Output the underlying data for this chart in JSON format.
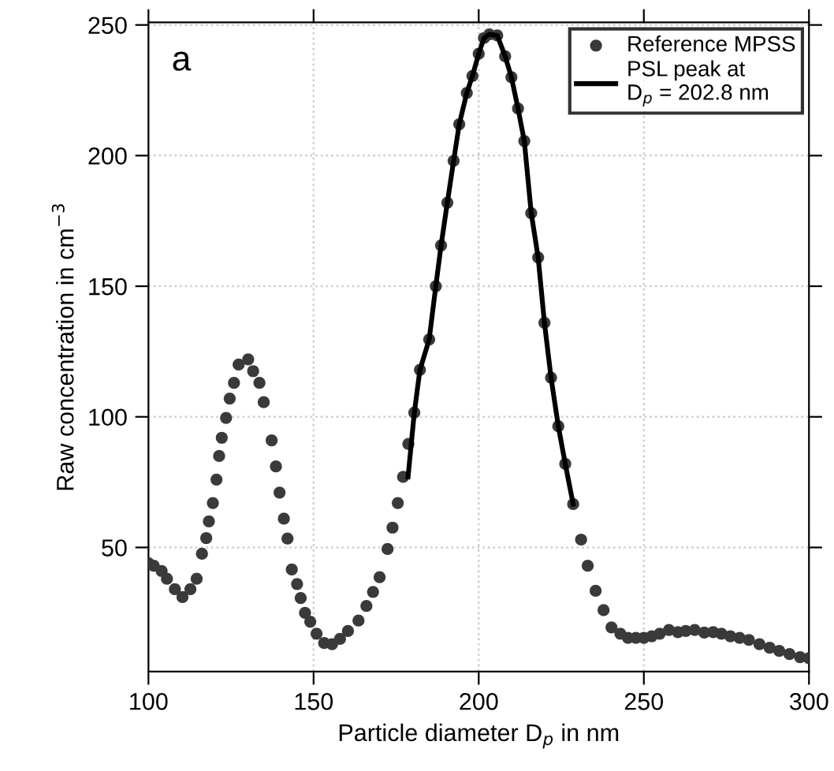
{
  "chart_data": {
    "type": "scatter",
    "xlabel": "Particle diameter D$_{p}$ in nm",
    "ylabel": "Raw concentration in cm$^{−3}$",
    "annotations": [
      "a"
    ],
    "xlim": [
      100,
      300
    ],
    "xticks": [
      100,
      150,
      200,
      250,
      300
    ],
    "ylim": [
      2.5,
      251
    ],
    "yticks": [
      50,
      100,
      150,
      200,
      250
    ],
    "grid": true,
    "legend": "top right",
    "marker": "circle",
    "series": [
      {
        "name": "Reference MPSS",
        "color": "#3a3a3a",
        "x": [
          100,
          101.6,
          104,
          105.6,
          108,
          110.3,
          112.7,
          114.6,
          116.2,
          117.5,
          118.3,
          119.5,
          120.6,
          121.4,
          122.2,
          123.5,
          124.6,
          125.9,
          127.3,
          130.2,
          131.7,
          133.6,
          134.9,
          137.3,
          138.6,
          139.7,
          141,
          142.1,
          143.4,
          145,
          146.1,
          147.4,
          149,
          150.9,
          153.2,
          155.6,
          158,
          160.4,
          163.6,
          166,
          168,
          170,
          172.4,
          173.9,
          175.5,
          177.1,
          178.7,
          180.5,
          182.2,
          185,
          187,
          188.6,
          190.5,
          192.4,
          194.1,
          196.4,
          198.1,
          200,
          201.6,
          203.2,
          205.6,
          208,
          209.9,
          211.9,
          213.8,
          215.9,
          218,
          219.9,
          221.9,
          224.1,
          226.2,
          228.6,
          231,
          233,
          235.4,
          237.8,
          240.2,
          242.9,
          245.2,
          247.6,
          250,
          252.4,
          254.8,
          257.6,
          260.3,
          262.7,
          265.4,
          268.3,
          271,
          273.5,
          276.2,
          279,
          281.8,
          285,
          288.1,
          291,
          294.1,
          297.3,
          300
        ],
        "values": [
          44,
          43,
          41,
          38,
          34,
          31,
          34,
          38,
          47.6,
          53.6,
          60,
          67,
          76,
          85,
          92,
          99.6,
          107,
          113,
          120,
          122,
          117.5,
          113,
          105.6,
          91,
          81,
          71,
          61,
          53.4,
          41.6,
          36,
          30.6,
          25,
          21.6,
          17,
          13.4,
          13,
          15,
          18,
          22,
          27.6,
          33,
          38.6,
          49.4,
          57.6,
          67,
          77,
          89.6,
          101.6,
          118,
          129.6,
          150,
          165.6,
          182,
          198,
          212,
          224,
          230.5,
          239,
          245,
          246.4,
          246,
          238,
          230,
          218,
          205.6,
          178,
          161,
          136,
          115,
          96.4,
          82,
          66.6,
          53,
          43,
          33.4,
          26,
          19.4,
          17,
          15.4,
          15.4,
          15.4,
          16,
          17,
          18.4,
          17.6,
          18,
          18.4,
          17.4,
          17.6,
          17,
          16,
          15.4,
          14.6,
          13,
          11.6,
          10.4,
          9.2,
          8,
          7.6
        ]
      },
      {
        "name": "PSL peak at\nD$_{p}$ = 202.8 nm",
        "type": "line",
        "color": "#000000",
        "line_style": "solid",
        "marker": "none",
        "x": [
          178.6,
          180.5,
          182.2,
          185,
          187,
          188.6,
          190.5,
          192.4,
          194.1,
          196.4,
          198.1,
          200,
          201.6,
          203.2,
          205.6,
          208,
          209.9,
          211.9,
          213.8,
          215.9,
          218,
          219.9,
          221.9,
          224.1,
          226.2,
          228.6
        ],
        "values": [
          77,
          101.6,
          118,
          129.6,
          150,
          165.6,
          182,
          198,
          212,
          224,
          230.5,
          239,
          245,
          246.4,
          246,
          238,
          230,
          218,
          205.6,
          178,
          161,
          136,
          115,
          96.4,
          82,
          66.6
        ]
      }
    ]
  }
}
